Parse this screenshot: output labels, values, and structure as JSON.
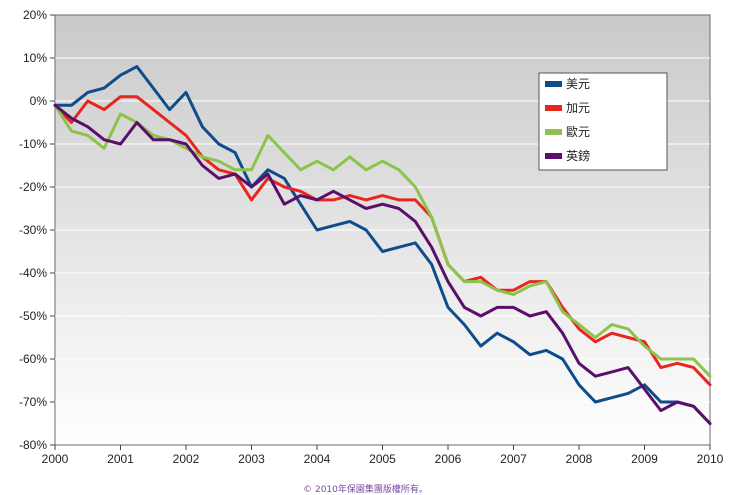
{
  "chart_data": {
    "type": "line",
    "xlim": [
      2000,
      2010
    ],
    "ylim": [
      -80,
      20
    ],
    "x_ticks": [
      2000,
      2001,
      2002,
      2003,
      2004,
      2005,
      2006,
      2007,
      2008,
      2009,
      2010
    ],
    "y_ticks": [
      20,
      10,
      0,
      -10,
      -20,
      -30,
      -40,
      -50,
      -60,
      -70,
      -80
    ],
    "y_tick_suffix": "%",
    "grid": "horizontal",
    "legend_position": "top-right",
    "series": [
      {
        "name": "美元",
        "color": "#0e4c8a",
        "x": [
          2000,
          2000.25,
          2000.5,
          2000.75,
          2001,
          2001.25,
          2001.5,
          2001.75,
          2002,
          2002.25,
          2002.5,
          2002.75,
          2003,
          2003.25,
          2003.5,
          2003.75,
          2004,
          2004.25,
          2004.5,
          2004.75,
          2005,
          2005.25,
          2005.5,
          2005.75,
          2006,
          2006.25,
          2006.5,
          2006.75,
          2007,
          2007.25,
          2007.5,
          2007.75,
          2008,
          2008.25,
          2008.5,
          2008.75,
          2009,
          2009.25,
          2009.5,
          2009.75,
          2010
        ],
        "y": [
          -1,
          -1,
          2,
          3,
          6,
          8,
          3,
          -2,
          2,
          -6,
          -10,
          -12,
          -20,
          -16,
          -18,
          -24,
          -30,
          -29,
          -28,
          -30,
          -35,
          -34,
          -33,
          -38,
          -48,
          -52,
          -57,
          -54,
          -56,
          -59,
          -58,
          -60,
          -66,
          -70,
          -69,
          -68,
          -66,
          -70,
          -70,
          -71,
          -75
        ]
      },
      {
        "name": "加元",
        "color": "#e8261f",
        "x": [
          2000,
          2000.25,
          2000.5,
          2000.75,
          2001,
          2001.25,
          2001.5,
          2001.75,
          2002,
          2002.25,
          2002.5,
          2002.75,
          2003,
          2003.25,
          2003.5,
          2003.75,
          2004,
          2004.25,
          2004.5,
          2004.75,
          2005,
          2005.25,
          2005.5,
          2005.75,
          2006,
          2006.25,
          2006.5,
          2006.75,
          2007,
          2007.25,
          2007.5,
          2007.75,
          2008,
          2008.25,
          2008.5,
          2008.75,
          2009,
          2009.25,
          2009.5,
          2009.75,
          2010
        ],
        "y": [
          -1,
          -5,
          0,
          -2,
          1,
          1,
          -2,
          -5,
          -8,
          -13,
          -16,
          -17,
          -23,
          -18,
          -20,
          -21,
          -23,
          -23,
          -22,
          -23,
          -22,
          -23,
          -23,
          -27,
          -38,
          -42,
          -41,
          -44,
          -44,
          -42,
          -42,
          -48,
          -53,
          -56,
          -54,
          -55,
          -56,
          -62,
          -61,
          -62,
          -66
        ]
      },
      {
        "name": "歐元",
        "color": "#8dc34a",
        "x": [
          2000,
          2000.25,
          2000.5,
          2000.75,
          2001,
          2001.25,
          2001.5,
          2001.75,
          2002,
          2002.25,
          2002.5,
          2002.75,
          2003,
          2003.25,
          2003.5,
          2003.75,
          2004,
          2004.25,
          2004.5,
          2004.75,
          2005,
          2005.25,
          2005.5,
          2005.75,
          2006,
          2006.25,
          2006.5,
          2006.75,
          2007,
          2007.25,
          2007.5,
          2007.75,
          2008,
          2008.25,
          2008.5,
          2008.75,
          2009,
          2009.25,
          2009.5,
          2009.75,
          2010
        ],
        "y": [
          -1,
          -7,
          -8,
          -11,
          -3,
          -5,
          -8,
          -9,
          -11,
          -13,
          -14,
          -16,
          -16,
          -8,
          -12,
          -16,
          -14,
          -16,
          -13,
          -16,
          -14,
          -16,
          -20,
          -27,
          -38,
          -42,
          -42,
          -44,
          -45,
          -43,
          -42,
          -49,
          -52,
          -55,
          -52,
          -53,
          -57,
          -60,
          -60,
          -60,
          -64
        ]
      },
      {
        "name": "英鎊",
        "color": "#5a0f6a",
        "x": [
          2000,
          2000.25,
          2000.5,
          2000.75,
          2001,
          2001.25,
          2001.5,
          2001.75,
          2002,
          2002.25,
          2002.5,
          2002.75,
          2003,
          2003.25,
          2003.5,
          2003.75,
          2004,
          2004.25,
          2004.5,
          2004.75,
          2005,
          2005.25,
          2005.5,
          2005.75,
          2006,
          2006.25,
          2006.5,
          2006.75,
          2007,
          2007.25,
          2007.5,
          2007.75,
          2008,
          2008.25,
          2008.5,
          2008.75,
          2009,
          2009.25,
          2009.5,
          2009.75,
          2010
        ],
        "y": [
          -1,
          -4,
          -6,
          -9,
          -10,
          -5,
          -9,
          -9,
          -10,
          -15,
          -18,
          -17,
          -20,
          -17,
          -24,
          -22,
          -23,
          -21,
          -23,
          -25,
          -24,
          -25,
          -28,
          -34,
          -42,
          -48,
          -50,
          -48,
          -48,
          -50,
          -49,
          -54,
          -61,
          -64,
          -63,
          -62,
          -67,
          -72,
          -70,
          -71,
          -75
        ]
      }
    ]
  },
  "footer": {
    "copyright": "© 2010年保園集團版權所有。"
  }
}
